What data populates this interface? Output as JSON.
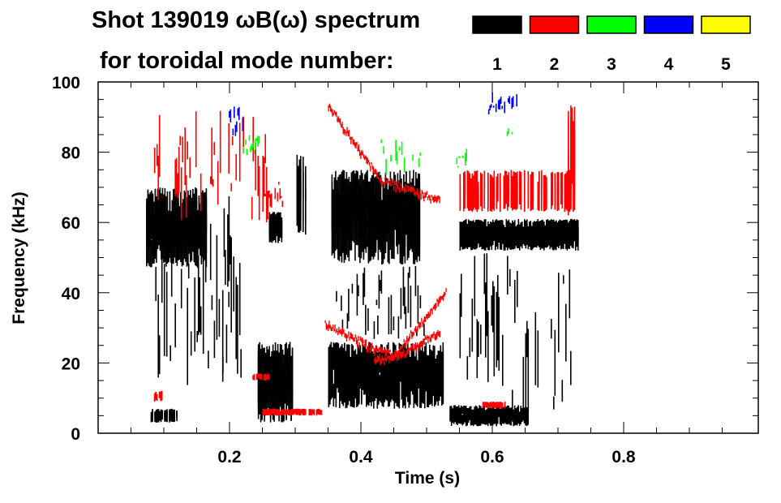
{
  "chart_data": {
    "type": "heatmap",
    "title": "Shot 139019 ωB(ω) spectrum",
    "subtitle": "for toroidal mode number:",
    "xlabel": "Time (s)",
    "ylabel": "Frequency (kHz)",
    "xlim": [
      0,
      1.0
    ],
    "ylim": [
      0,
      100
    ],
    "xticks": [
      "0.2",
      "0.4",
      "0.6",
      "0.8"
    ],
    "xtick_values": [
      0.2,
      0.4,
      0.6,
      0.8
    ],
    "yticks": [
      "0",
      "20",
      "40",
      "60",
      "80",
      "100"
    ],
    "ytick_values": [
      0,
      20,
      40,
      60,
      80,
      100
    ],
    "legend": {
      "placement": "top-right",
      "entries": [
        {
          "label": "1",
          "color": "#000000"
        },
        {
          "label": "2",
          "color": "#ff0000"
        },
        {
          "label": "3",
          "color": "#00ff00"
        },
        {
          "label": "4",
          "color": "#0000ff"
        },
        {
          "label": "5",
          "color": "#ffff00"
        }
      ]
    },
    "regions": [
      {
        "mode": 1,
        "t": [
          0.073,
          0.165
        ],
        "f": [
          47,
          70
        ],
        "density": 0.9
      },
      {
        "mode": 1,
        "t": [
          0.085,
          0.22
        ],
        "f": [
          8,
          62
        ],
        "density": 0.25
      },
      {
        "mode": 1,
        "t": [
          0.08,
          0.12
        ],
        "f": [
          3,
          7
        ],
        "density": 0.6
      },
      {
        "mode": 1,
        "t": [
          0.165,
          0.22
        ],
        "f": [
          12,
          70
        ],
        "density": 0.2
      },
      {
        "mode": 1,
        "t": [
          0.243,
          0.295
        ],
        "f": [
          3,
          26
        ],
        "density": 0.85
      },
      {
        "mode": 1,
        "t": [
          0.26,
          0.28
        ],
        "f": [
          54,
          63
        ],
        "density": 0.7
      },
      {
        "mode": 1,
        "t": [
          0.3,
          0.315
        ],
        "f": [
          56,
          80
        ],
        "density": 0.6
      },
      {
        "mode": 1,
        "t": [
          0.35,
          0.525
        ],
        "f": [
          7,
          26
        ],
        "density": 0.9
      },
      {
        "mode": 1,
        "t": [
          0.355,
          0.49
        ],
        "f": [
          48,
          75
        ],
        "density": 0.8
      },
      {
        "mode": 1,
        "t": [
          0.36,
          0.5
        ],
        "f": [
          26,
          48
        ],
        "density": 0.15
      },
      {
        "mode": 1,
        "t": [
          0.535,
          0.655
        ],
        "f": [
          2,
          8
        ],
        "density": 0.85
      },
      {
        "mode": 1,
        "t": [
          0.55,
          0.73
        ],
        "f": [
          52,
          61
        ],
        "density": 0.85
      },
      {
        "mode": 1,
        "t": [
          0.55,
          0.73
        ],
        "f": [
          5,
          52
        ],
        "density": 0.18
      },
      {
        "mode": 2,
        "t": [
          0.085,
          0.26
        ],
        "f": [
          60,
          93
        ],
        "density": 0.25
      },
      {
        "mode": 2,
        "t": [
          0.25,
          0.28
        ],
        "f": [
          64,
          72
        ],
        "density": 0.5
      },
      {
        "mode": 2,
        "t": [
          0.55,
          0.72
        ],
        "f": [
          63,
          75
        ],
        "density": 0.55
      },
      {
        "mode": 2,
        "t": [
          0.715,
          0.725
        ],
        "f": [
          62,
          94
        ],
        "density": 0.6
      },
      {
        "mode": 2,
        "t": [
          0.25,
          0.34
        ],
        "f": [
          5,
          7
        ],
        "density": 0.7
      },
      {
        "mode": 2,
        "t": [
          0.085,
          0.1
        ],
        "f": [
          9,
          12
        ],
        "density": 0.6
      },
      {
        "mode": 2,
        "t": [
          0.235,
          0.26
        ],
        "f": [
          15,
          17
        ],
        "density": 0.6
      },
      {
        "mode": 2,
        "t": [
          0.585,
          0.62
        ],
        "f": [
          7,
          9
        ],
        "density": 0.6
      },
      {
        "mode": 3,
        "t": [
          0.43,
          0.49
        ],
        "f": [
          73,
          84
        ],
        "density": 0.3
      },
      {
        "mode": 3,
        "t": [
          0.22,
          0.245
        ],
        "f": [
          79,
          85
        ],
        "density": 0.4
      },
      {
        "mode": 3,
        "t": [
          0.545,
          0.56
        ],
        "f": [
          75,
          82
        ],
        "density": 0.4
      },
      {
        "mode": 3,
        "t": [
          0.62,
          0.63
        ],
        "f": [
          84,
          87
        ],
        "density": 0.4
      },
      {
        "mode": 4,
        "t": [
          0.59,
          0.64
        ],
        "f": [
          90,
          97
        ],
        "density": 0.35
      },
      {
        "mode": 4,
        "t": [
          0.195,
          0.22
        ],
        "f": [
          84,
          93
        ],
        "density": 0.3
      }
    ],
    "chirps": [
      {
        "mode": 2,
        "t": [
          0.35,
          0.43,
          0.52
        ],
        "f": [
          93,
          72,
          66
        ]
      },
      {
        "mode": 2,
        "t": [
          0.345,
          0.42,
          0.45,
          0.52,
          0.53
        ],
        "f": [
          31,
          24,
          22,
          38,
          40
        ]
      },
      {
        "mode": 2,
        "t": [
          0.42,
          0.46,
          0.52
        ],
        "f": [
          21,
          22,
          29
        ]
      }
    ]
  }
}
